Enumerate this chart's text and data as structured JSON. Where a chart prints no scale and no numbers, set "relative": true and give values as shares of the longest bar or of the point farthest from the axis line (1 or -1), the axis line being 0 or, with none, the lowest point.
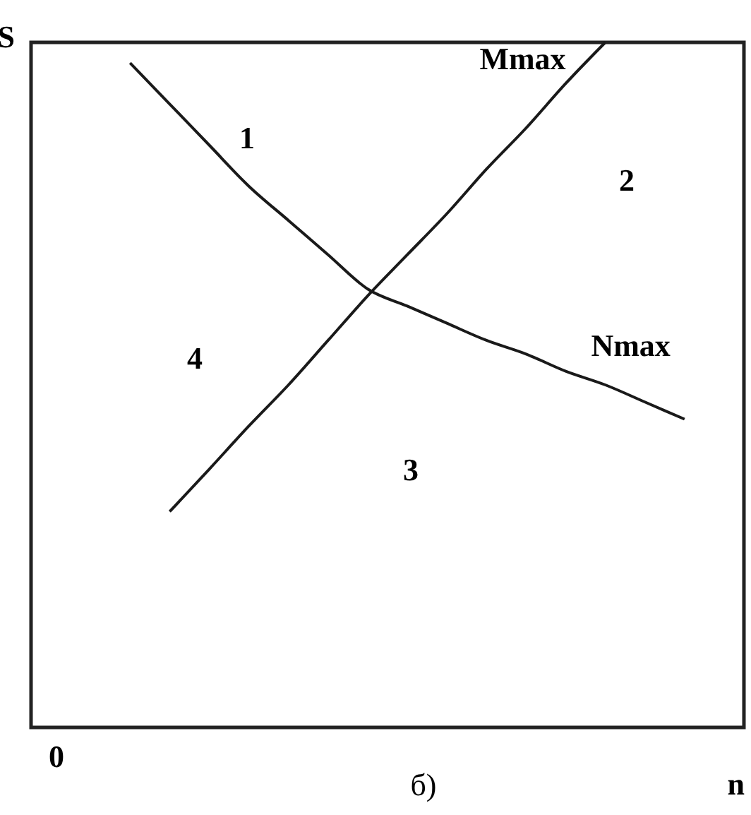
{
  "chart_data": {
    "type": "line",
    "relative": true,
    "xlabel": "n",
    "ylabel": "S",
    "tick_labels": false,
    "categories": [
      null,
      null,
      null,
      null,
      null,
      null,
      null,
      null,
      null,
      null,
      null,
      null,
      null,
      null,
      null,
      null,
      null,
      null
    ],
    "series": [
      {
        "name": "Mmax",
        "color": "#1a1a1a",
        "values": [
          null,
          null,
          null,
          0.315,
          0.377,
          0.44,
          0.5,
          0.565,
          0.63,
          0.69,
          0.75,
          0.815,
          0.875,
          0.94,
          1.0,
          null,
          null,
          null
        ]
      },
      {
        "name": "Nmax",
        "color": "#1a1a1a",
        "values": [
          null,
          null,
          0.97,
          0.91,
          0.85,
          0.79,
          0.74,
          0.69,
          0.64,
          0.615,
          0.59,
          0.565,
          0.545,
          0.52,
          0.5,
          0.475,
          0.45,
          null
        ]
      }
    ],
    "annotations": [
      "1",
      "2",
      "3",
      "4",
      "0",
      "б)"
    ]
  }
}
